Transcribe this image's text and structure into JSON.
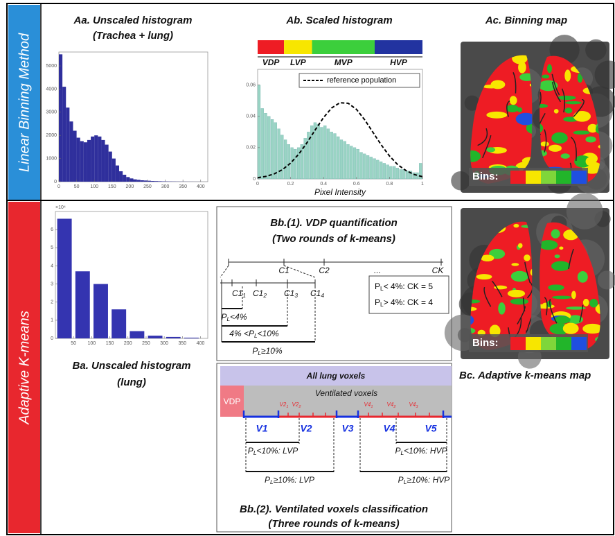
{
  "side_labels": [
    "Linear Binning Method",
    "Adaptive K-means"
  ],
  "chart_data": [
    {
      "type": "histogram",
      "title": "Aa. Unscaled histogram",
      "subtitle": "(Trachea + lung)",
      "color": "#2f2f9c",
      "bins": [
        0,
        10,
        20,
        30,
        40,
        50,
        60,
        70,
        80,
        90,
        100,
        110,
        120,
        130,
        140,
        150,
        160,
        170,
        180,
        190,
        200,
        210,
        220,
        230,
        240,
        250,
        260,
        270,
        280,
        290,
        300,
        310,
        320,
        330,
        340,
        350,
        360,
        370,
        380,
        390,
        400,
        410,
        420
      ],
      "counts": [
        5500,
        4100,
        3200,
        2600,
        2200,
        1900,
        1750,
        1700,
        1800,
        1950,
        2000,
        1950,
        1800,
        1600,
        1300,
        1000,
        700,
        450,
        300,
        200,
        140,
        100,
        80,
        60,
        50,
        40,
        30,
        25,
        20,
        15,
        12,
        10,
        8,
        6,
        5,
        4,
        3,
        3,
        2,
        2,
        1,
        1
      ],
      "xlim": [
        0,
        420
      ],
      "ylim": [
        0,
        5600
      ],
      "xticks": [
        0,
        50,
        100,
        150,
        200,
        250,
        300,
        350,
        400
      ],
      "yticks": [
        0,
        1000,
        2000,
        3000,
        4000,
        5000
      ]
    },
    {
      "type": "histogram",
      "title": "Ab. Scaled histogram",
      "xlabel": "Pixel Intensity",
      "color": "#9ad4c4",
      "bins": [
        0,
        0.02,
        0.04,
        0.06,
        0.08,
        0.1,
        0.12,
        0.14,
        0.16,
        0.18,
        0.2,
        0.22,
        0.24,
        0.26,
        0.28,
        0.3,
        0.32,
        0.34,
        0.36,
        0.38,
        0.4,
        0.42,
        0.44,
        0.46,
        0.48,
        0.5,
        0.52,
        0.54,
        0.56,
        0.58,
        0.6,
        0.62,
        0.64,
        0.66,
        0.68,
        0.7,
        0.72,
        0.74,
        0.76,
        0.78,
        0.8,
        0.82,
        0.84,
        0.86,
        0.88,
        0.9,
        0.92,
        0.94,
        0.96,
        0.98,
        1
      ],
      "counts": [
        0.06,
        0.045,
        0.042,
        0.04,
        0.038,
        0.036,
        0.032,
        0.028,
        0.025,
        0.022,
        0.02,
        0.019,
        0.02,
        0.022,
        0.026,
        0.03,
        0.034,
        0.036,
        0.035,
        0.033,
        0.034,
        0.032,
        0.03,
        0.029,
        0.027,
        0.025,
        0.024,
        0.022,
        0.021,
        0.02,
        0.019,
        0.017,
        0.016,
        0.015,
        0.014,
        0.013,
        0.012,
        0.011,
        0.01,
        0.009,
        0.008,
        0.008,
        0.007,
        0.006,
        0.006,
        0.005,
        0.005,
        0.004,
        0.004,
        0.01
      ],
      "series": [
        {
          "name": "reference population",
          "color": "#000000",
          "x": [
            0,
            0.05,
            0.1,
            0.15,
            0.2,
            0.25,
            0.3,
            0.35,
            0.4,
            0.45,
            0.5,
            0.55,
            0.6,
            0.65,
            0.7,
            0.75,
            0.8,
            0.85,
            0.9,
            0.95,
            1
          ],
          "values": [
            0.0008,
            0.0016,
            0.0032,
            0.0059,
            0.0101,
            0.0159,
            0.0232,
            0.0314,
            0.0392,
            0.0454,
            0.0487,
            0.0483,
            0.0444,
            0.0377,
            0.0297,
            0.0217,
            0.0146,
            0.0091,
            0.0053,
            0.0028,
            0.0014
          ]
        }
      ],
      "bands": [
        {
          "name": "VDP",
          "color": "#ee1c24",
          "start": 0,
          "end": 0.16
        },
        {
          "name": "LVP",
          "color": "#f7e600",
          "start": 0.16,
          "end": 0.33
        },
        {
          "name": "MVP",
          "color": "#3ccf3c",
          "start": 0.33,
          "end": 0.71
        },
        {
          "name": "HVP",
          "color": "#2233a0",
          "start": 0.71,
          "end": 1
        }
      ],
      "legend": "upper right",
      "xlim": [
        0,
        1
      ],
      "ylim": [
        0,
        0.07
      ],
      "xticks": [
        0,
        0.2,
        0.4,
        0.6,
        0.8,
        1
      ],
      "yticks": [
        0,
        0.02,
        0.04,
        0.06
      ]
    },
    {
      "type": "bar",
      "title": "Ba. Unscaled histogram",
      "subtitle": "(lung)",
      "color": "#3434b0",
      "y_multiplier": "×10⁴",
      "x": [
        25,
        75,
        125,
        175,
        225,
        275,
        325,
        375
      ],
      "values": [
        6.6,
        3.7,
        3.0,
        1.6,
        0.4,
        0.15,
        0.08,
        0.04
      ],
      "xlim": [
        0,
        420
      ],
      "ylim": [
        0,
        7
      ],
      "xticks": [
        50,
        100,
        150,
        200,
        250,
        300,
        350,
        400
      ],
      "yticks": [
        0,
        1,
        2,
        3,
        4,
        5,
        6
      ]
    }
  ],
  "maps": [
    {
      "title": "Ac. Binning map",
      "legend": "Bins:"
    },
    {
      "title": "Bc. Adaptive k-means map",
      "legend": "Bins:"
    }
  ],
  "bin_colors": [
    "#ee1c24",
    "#f7e600",
    "#7fd63a",
    "#22b52a",
    "#1f4fe0"
  ],
  "vdp_quantification": {
    "title": "Bb.(1). VDP quantification",
    "subtitle": "(Two rounds of k-means)",
    "centers": [
      "C1",
      "C2",
      "...",
      "CK"
    ],
    "sub_centers": [
      {
        "base": "C1",
        "sub": "1"
      },
      {
        "base": "C1",
        "sub": "2"
      },
      {
        "base": "C1",
        "sub": "3"
      },
      {
        "base": "C1",
        "sub": "4"
      }
    ],
    "brackets": [
      {
        "base": "P",
        "sub": "L",
        "post": "<4%"
      },
      {
        "pre": "4% <",
        "base": "P",
        "sub": "L",
        "post": "<10%"
      },
      {
        "base": "P",
        "sub": "L",
        "post": "≥10%"
      }
    ],
    "rules": [
      {
        "base": "P",
        "sub": "L",
        "post": "< 4%: CK = 5"
      },
      {
        "base": "P",
        "sub": "L",
        "post": "> 4%: CK = 4"
      }
    ]
  },
  "ventilated_classification": {
    "title": "Bb.(2). Ventilated voxels classification",
    "subtitle": "(Three rounds of k-means)",
    "all": "All lung voxels",
    "ventilated": "Ventilated voxels",
    "vdp": "VDP",
    "v_labels": [
      "V1",
      "V2",
      "V3",
      "V4",
      "V5"
    ],
    "sub_labels": [
      {
        "base": "V2",
        "sub": "1"
      },
      {
        "base": "V2",
        "sub": "2"
      },
      {
        "base": "V4",
        "sub": "1"
      },
      {
        "base": "V4",
        "sub": "2"
      },
      {
        "base": "V4",
        "sub": "3"
      }
    ],
    "brackets": [
      {
        "base": "P",
        "sub": "L",
        "post": "<10%: LVP"
      },
      {
        "base": "P",
        "sub": "L",
        "post": "≥10%: LVP"
      },
      {
        "base": "P",
        "sub": "L",
        "post": "<10%: HVP"
      },
      {
        "base": "P",
        "sub": "L",
        "post": "≥10%: HVP"
      }
    ]
  }
}
